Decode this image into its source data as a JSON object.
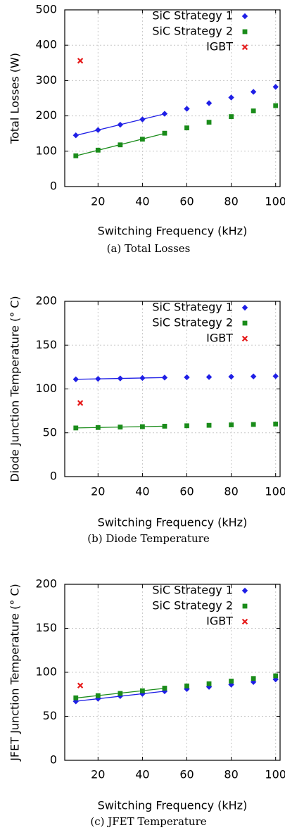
{
  "chart_data": [
    {
      "type": "scatter",
      "caption": "(a) Total Losses",
      "xlabel": "Switching Frequency (kHz)",
      "ylabel": "Total Losses (W)",
      "xlim": [
        5,
        102
      ],
      "ylim": [
        0,
        500
      ],
      "xticks": [
        20,
        40,
        60,
        80,
        100
      ],
      "yticks": [
        0,
        100,
        200,
        300,
        400,
        500
      ],
      "grid": true,
      "legend_position": "top-right",
      "series": [
        {
          "name": "SiC Strategy 1",
          "color": "#1f1fe6",
          "marker": "diamond",
          "x": [
            10,
            20,
            30,
            40,
            50,
            60,
            70,
            80,
            90,
            100
          ],
          "y": [
            145,
            160,
            175,
            190,
            206,
            220,
            236,
            252,
            268,
            282
          ],
          "fit_range": [
            10,
            50
          ]
        },
        {
          "name": "SiC Strategy 2",
          "color": "#1a8c1a",
          "marker": "square",
          "x": [
            10,
            20,
            30,
            40,
            50,
            60,
            70,
            80,
            90,
            100
          ],
          "y": [
            87,
            103,
            118,
            134,
            151,
            166,
            182,
            198,
            214,
            229
          ],
          "fit_range": [
            10,
            50
          ]
        },
        {
          "name": "IGBT",
          "color": "#e61a1a",
          "marker": "x",
          "x": [
            12
          ],
          "y": [
            356
          ]
        }
      ]
    },
    {
      "type": "scatter",
      "caption": "(b) Diode Temperature",
      "xlabel": "Switching Frequency (kHz)",
      "ylabel": "Diode Junction Temperature (° C)",
      "xlim": [
        5,
        102
      ],
      "ylim": [
        0,
        200
      ],
      "xticks": [
        20,
        40,
        60,
        80,
        100
      ],
      "yticks": [
        0,
        50,
        100,
        150,
        200
      ],
      "grid": true,
      "legend_position": "top-right",
      "series": [
        {
          "name": "SiC Strategy 1",
          "color": "#1f1fe6",
          "marker": "diamond",
          "x": [
            10,
            20,
            30,
            40,
            50,
            60,
            70,
            80,
            90,
            100
          ],
          "y": [
            111,
            111.5,
            112,
            112.5,
            113,
            113.3,
            113.6,
            114,
            114.3,
            114.6
          ],
          "fit_range": [
            10,
            50
          ]
        },
        {
          "name": "SiC Strategy 2",
          "color": "#1a8c1a",
          "marker": "square",
          "x": [
            10,
            20,
            30,
            40,
            50,
            60,
            70,
            80,
            90,
            100
          ],
          "y": [
            55.5,
            56,
            56.5,
            57,
            57.5,
            58,
            58.5,
            59,
            59.5,
            60
          ],
          "fit_range": [
            10,
            50
          ]
        },
        {
          "name": "IGBT",
          "color": "#e61a1a",
          "marker": "x",
          "x": [
            12
          ],
          "y": [
            84
          ]
        }
      ]
    },
    {
      "type": "scatter",
      "caption": "(c) JFET Temperature",
      "xlabel": "Switching Frequency (kHz)",
      "ylabel": "JFET Junction Temperature (° C)",
      "xlim": [
        5,
        102
      ],
      "ylim": [
        0,
        200
      ],
      "xticks": [
        20,
        40,
        60,
        80,
        100
      ],
      "yticks": [
        0,
        50,
        100,
        150,
        200
      ],
      "grid": true,
      "legend_position": "top-right",
      "series": [
        {
          "name": "SiC Strategy 1",
          "color": "#1f1fe6",
          "marker": "diamond",
          "x": [
            10,
            20,
            30,
            40,
            50,
            60,
            70,
            80,
            90,
            100
          ],
          "y": [
            67,
            70,
            73,
            75.5,
            78.5,
            81,
            83.5,
            86,
            89,
            92
          ],
          "fit_range": [
            10,
            50
          ]
        },
        {
          "name": "SiC Strategy 2",
          "color": "#1a8c1a",
          "marker": "square",
          "x": [
            10,
            20,
            30,
            40,
            50,
            60,
            70,
            80,
            90,
            100
          ],
          "y": [
            71,
            73.5,
            76,
            79,
            82,
            84.5,
            87,
            90,
            93,
            96
          ],
          "fit_range": [
            10,
            50
          ]
        },
        {
          "name": "IGBT",
          "color": "#e61a1a",
          "marker": "x",
          "x": [
            12
          ],
          "y": [
            85
          ]
        }
      ]
    }
  ]
}
